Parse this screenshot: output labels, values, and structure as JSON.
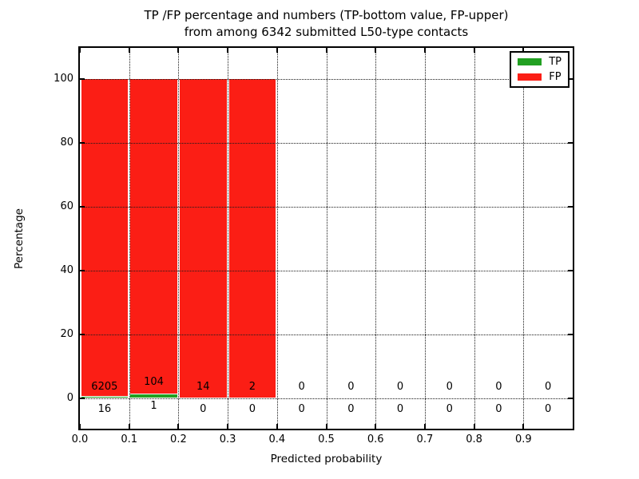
{
  "title": {
    "line1": "TP /FP percentage and numbers (TP-bottom value, FP-upper)",
    "line2": "from among 6342 submitted L50-type contacts"
  },
  "chart_data": {
    "type": "bar",
    "stacked": true,
    "title": "TP /FP percentage and numbers (TP-bottom value, FP-upper) from among 6342 submitted L50-type contacts",
    "xlabel": "Predicted probability",
    "ylabel": "Percentage",
    "xlim": [
      0.0,
      1.0
    ],
    "ylim": [
      -10,
      110
    ],
    "x_ticks": [
      "0.0",
      "0.1",
      "0.2",
      "0.3",
      "0.4",
      "0.5",
      "0.6",
      "0.7",
      "0.8",
      "0.9"
    ],
    "y_ticks": [
      0,
      20,
      40,
      60,
      80,
      100
    ],
    "grid": "dotted",
    "legend_position": "upper right",
    "total_contacts": 6342,
    "bin_width": 0.1,
    "categories": [
      "0.0-0.1",
      "0.1-0.2",
      "0.2-0.3",
      "0.3-0.4",
      "0.4-0.5",
      "0.5-0.6",
      "0.6-0.7",
      "0.7-0.8",
      "0.8-0.9",
      "0.9-1.0"
    ],
    "series": [
      {
        "name": "TP",
        "color": "#22a022",
        "counts": [
          16,
          1,
          0,
          0,
          0,
          0,
          0,
          0,
          0,
          0
        ]
      },
      {
        "name": "FP",
        "color": "#fb1e15",
        "counts": [
          6205,
          104,
          14,
          2,
          0,
          0,
          0,
          0,
          0,
          0
        ]
      }
    ],
    "bins": [
      {
        "range": [
          0.0,
          0.1
        ],
        "tp_count": 16,
        "fp_count": 6205,
        "tp_pct": 0.26,
        "fp_pct": 99.74
      },
      {
        "range": [
          0.1,
          0.2
        ],
        "tp_count": 1,
        "fp_count": 104,
        "tp_pct": 0.95,
        "fp_pct": 99.05
      },
      {
        "range": [
          0.2,
          0.3
        ],
        "tp_count": 0,
        "fp_count": 14,
        "tp_pct": 0.0,
        "fp_pct": 100.0
      },
      {
        "range": [
          0.3,
          0.4
        ],
        "tp_count": 0,
        "fp_count": 2,
        "tp_pct": 0.0,
        "fp_pct": 100.0
      },
      {
        "range": [
          0.4,
          0.5
        ],
        "tp_count": 0,
        "fp_count": 0,
        "tp_pct": 0.0,
        "fp_pct": 0.0
      },
      {
        "range": [
          0.5,
          0.6
        ],
        "tp_count": 0,
        "fp_count": 0,
        "tp_pct": 0.0,
        "fp_pct": 0.0
      },
      {
        "range": [
          0.6,
          0.7
        ],
        "tp_count": 0,
        "fp_count": 0,
        "tp_pct": 0.0,
        "fp_pct": 0.0
      },
      {
        "range": [
          0.7,
          0.8
        ],
        "tp_count": 0,
        "fp_count": 0,
        "tp_pct": 0.0,
        "fp_pct": 0.0
      },
      {
        "range": [
          0.8,
          0.9
        ],
        "tp_count": 0,
        "fp_count": 0,
        "tp_pct": 0.0,
        "fp_pct": 0.0
      },
      {
        "range": [
          0.9,
          1.0
        ],
        "tp_count": 0,
        "fp_count": 0,
        "tp_pct": 0.0,
        "fp_pct": 0.0
      }
    ]
  },
  "legend": {
    "items": [
      {
        "label": "TP",
        "color": "#22a022"
      },
      {
        "label": "FP",
        "color": "#fb1e15"
      }
    ]
  },
  "colors": {
    "tp_green": "#22a022",
    "fp_red": "#fb1e15",
    "grid": "#1a1a1a",
    "background": "#ffffff"
  }
}
